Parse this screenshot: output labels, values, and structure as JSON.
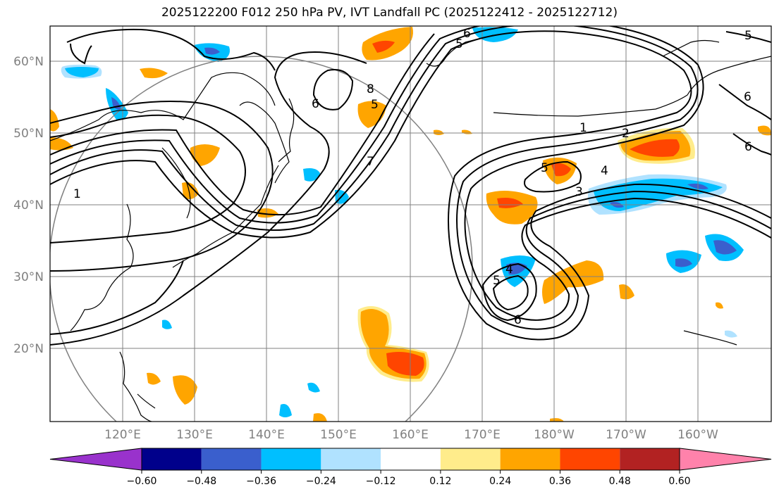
{
  "title": "2025122200 F012 250 hPa PV, IVT Landfall PC (2025122412 - 2025122712)",
  "lat_labels": [
    "60°N",
    "50°N",
    "40°N",
    "30°N",
    "20°N"
  ],
  "lon_labels": [
    "120°E",
    "130°E",
    "140°E",
    "150°E",
    "160°E",
    "170°E",
    "180°W",
    "170°W",
    "160°W"
  ],
  "colorbar": {
    "ticks": [
      "−0.60",
      "−0.48",
      "−0.36",
      "−0.24",
      "−0.12",
      "0.12",
      "0.24",
      "0.36",
      "0.48",
      "0.60"
    ],
    "colors": [
      "#9932cc",
      "#00008b",
      "#3a5fcd",
      "#00bfff",
      "#b0e2ff",
      "#ffffff",
      "#ffec8b",
      "#ffa500",
      "#ff4500",
      "#b22222",
      "#ff82ab"
    ]
  },
  "contour_labels": [
    "6",
    "5",
    "6",
    "8",
    "7",
    "1",
    "1",
    "2",
    "4",
    "3",
    "5",
    "5",
    "4",
    "5",
    "6",
    "5",
    "6",
    "6"
  ],
  "colors": {
    "contour": "#000000",
    "grid": "#808080",
    "coast": "#000000",
    "circle": "#808080"
  }
}
